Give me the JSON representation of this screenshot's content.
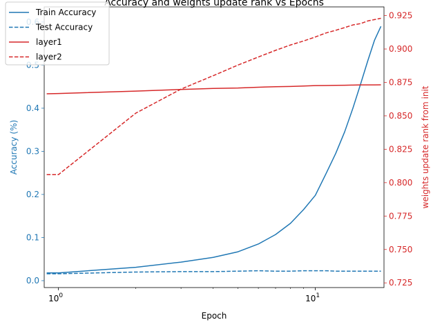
{
  "chart_data": {
    "type": "line",
    "title": "Accuracy and weights update rank vs Epochs",
    "xlabel": "Epoch",
    "x_scale": "log",
    "xlim": [
      0.88,
      18.5
    ],
    "x_ticks": [
      {
        "value": 1,
        "base": "10",
        "exp": "0"
      },
      {
        "value": 10,
        "base": "10",
        "exp": "1"
      }
    ],
    "left_axis": {
      "label": "Accuracy (%)",
      "color": "#1f77b4",
      "ylim": [
        -0.016,
        0.635
      ],
      "ticks": [
        "0.0",
        "0.1",
        "0.2",
        "0.3",
        "0.4",
        "0.5",
        "0.6"
      ]
    },
    "right_axis": {
      "label": "weights update rank from init",
      "color": "#d62728",
      "ylim": [
        0.7215,
        0.9315
      ],
      "ticks": [
        "0.725",
        "0.750",
        "0.775",
        "0.800",
        "0.825",
        "0.850",
        "0.875",
        "0.900",
        "0.925"
      ]
    },
    "legend_position": "upper-left",
    "grid": false,
    "series": [
      {
        "name": "Train Accuracy",
        "axis": "left",
        "color": "#1f77b4",
        "dash": "solid",
        "x": [
          0.9,
          1,
          2,
          3,
          4,
          5,
          6,
          7,
          8,
          9,
          10,
          11,
          12,
          13,
          14,
          15,
          16,
          17,
          18
        ],
        "y": [
          0.018,
          0.018,
          0.031,
          0.043,
          0.054,
          0.067,
          0.085,
          0.107,
          0.133,
          0.165,
          0.198,
          0.248,
          0.295,
          0.345,
          0.4,
          0.456,
          0.51,
          0.558,
          0.59
        ]
      },
      {
        "name": "Test Accuracy",
        "axis": "left",
        "color": "#1f77b4",
        "dash": "dashed",
        "x": [
          0.9,
          1,
          2,
          3,
          4,
          5,
          6,
          7,
          8,
          9,
          10,
          11,
          12,
          13,
          14,
          15,
          16,
          17,
          18
        ],
        "y": [
          0.016,
          0.016,
          0.02,
          0.021,
          0.021,
          0.022,
          0.023,
          0.022,
          0.022,
          0.023,
          0.023,
          0.023,
          0.022,
          0.022,
          0.022,
          0.022,
          0.022,
          0.022,
          0.022
        ]
      },
      {
        "name": "layer1",
        "axis": "right",
        "color": "#d62728",
        "dash": "solid",
        "x": [
          0.9,
          1,
          2,
          3,
          4,
          5,
          6,
          7,
          8,
          9,
          10,
          11,
          12,
          13,
          14,
          15,
          16,
          17,
          18
        ],
        "y": [
          0.8665,
          0.8667,
          0.8685,
          0.8697,
          0.8705,
          0.8708,
          0.8714,
          0.8718,
          0.872,
          0.8723,
          0.8726,
          0.8727,
          0.8728,
          0.8729,
          0.873,
          0.8731,
          0.8731,
          0.8731,
          0.8732
        ]
      },
      {
        "name": "layer2",
        "axis": "right",
        "color": "#d62728",
        "dash": "dashed",
        "x": [
          0.9,
          1,
          2,
          3,
          4,
          5,
          6,
          7,
          8,
          9,
          10,
          11,
          12,
          13,
          14,
          15,
          16,
          17,
          18
        ],
        "y": [
          0.806,
          0.806,
          0.852,
          0.87,
          0.88,
          0.888,
          0.894,
          0.899,
          0.903,
          0.906,
          0.909,
          0.912,
          0.914,
          0.916,
          0.918,
          0.919,
          0.921,
          0.922,
          0.923
        ]
      }
    ]
  }
}
